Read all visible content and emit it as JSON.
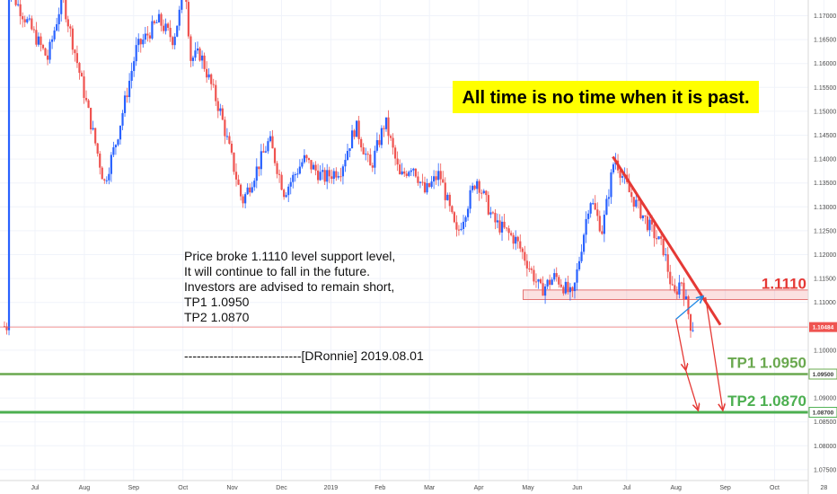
{
  "chart_data": {
    "type": "candlestick",
    "headline": "All time is no time when it is past.",
    "note_lines": [
      "Price broke 1.1110 level support level,",
      "It will continue to fall in the future.",
      "Investors are advised to remain short,",
      "TP1 1.0950",
      "TP2 1.0870",
      "",
      "----------------------------[DRonnie]  2019.08.01"
    ],
    "x_ticks": [
      "Jul",
      "Aug",
      "Sep",
      "Oct",
      "Nov",
      "Dec",
      "2019",
      "Feb",
      "Mar",
      "Apr",
      "May",
      "Jun",
      "Jul",
      "Aug",
      "Sep",
      "Oct",
      "28"
    ],
    "y_ticks": [
      "1.17000",
      "1.16500",
      "1.16000",
      "1.15500",
      "1.15000",
      "1.14500",
      "1.14000",
      "1.13500",
      "1.13000",
      "1.12500",
      "1.12000",
      "1.11500",
      "1.11000",
      "1.10500",
      "1.10000",
      "1.09500",
      "1.09000",
      "1.08500",
      "1.08000",
      "1.07500"
    ],
    "ylim": [
      1.0735,
      1.1735
    ],
    "grid": true,
    "last_price": {
      "label": "1.10484",
      "value": 1.10484,
      "color": "#ef5350"
    },
    "levels": [
      {
        "name": "support",
        "label": "1.1110",
        "value": 1.111,
        "color": "#e53935"
      },
      {
        "name": "tp1",
        "label": "TP1 1.0950",
        "badge": "1.09500",
        "value": 1.095,
        "color": "#6aa84f"
      },
      {
        "name": "tp2",
        "label": "TP2 1.0870",
        "badge": "1.08700",
        "value": 1.087,
        "color": "#4caf50"
      }
    ],
    "support_zone": {
      "low": 1.1106,
      "high": 1.1126,
      "start_month": 9.9
    },
    "trendline": {
      "from": [
        11.72,
        1.1405
      ],
      "to": [
        13.9,
        1.1053
      ]
    },
    "path_arrows": [
      [
        [
          13.0,
          1.1065
        ],
        [
          13.55,
          1.1113
        ]
      ],
      [
        [
          13.6,
          1.1111
        ],
        [
          13.95,
          1.0874
        ]
      ],
      [
        [
          13.0,
          1.1065
        ],
        [
          13.2,
          1.0958
        ]
      ],
      [
        [
          13.2,
          1.0958
        ],
        [
          13.45,
          1.0874
        ]
      ]
    ],
    "up_color": "#2962ff",
    "down_color": "#ef5350",
    "anchors": [
      [
        -0.5,
        1.176
      ],
      [
        0.3,
        1.161
      ],
      [
        0.6,
        1.174
      ],
      [
        0.95,
        1.158
      ],
      [
        1.45,
        1.135
      ],
      [
        1.7,
        1.144
      ],
      [
        2.1,
        1.163
      ],
      [
        2.55,
        1.169
      ],
      [
        2.85,
        1.165
      ],
      [
        3.1,
        1.176
      ],
      [
        3.2,
        1.161
      ],
      [
        3.4,
        1.162
      ],
      [
        3.8,
        1.15
      ],
      [
        4.25,
        1.131
      ],
      [
        4.8,
        1.144
      ],
      [
        5.1,
        1.133
      ],
      [
        5.5,
        1.14
      ],
      [
        5.9,
        1.136
      ],
      [
        6.25,
        1.138
      ],
      [
        6.55,
        1.147
      ],
      [
        6.85,
        1.138
      ],
      [
        7.15,
        1.148
      ],
      [
        7.45,
        1.136
      ],
      [
        7.7,
        1.139
      ],
      [
        7.95,
        1.133
      ],
      [
        8.25,
        1.137
      ],
      [
        8.6,
        1.124
      ],
      [
        9.0,
        1.136
      ],
      [
        9.35,
        1.127
      ],
      [
        9.8,
        1.123
      ],
      [
        9.95,
        1.12
      ],
      [
        10.3,
        1.1125
      ],
      [
        10.6,
        1.1155
      ],
      [
        10.95,
        1.111
      ],
      [
        11.3,
        1.132
      ],
      [
        11.55,
        1.125
      ],
      [
        11.8,
        1.1405
      ],
      [
        12.1,
        1.133
      ],
      [
        12.5,
        1.126
      ],
      [
        12.8,
        1.121
      ],
      [
        13.0,
        1.111
      ],
      [
        13.15,
        1.115
      ],
      [
        13.35,
        1.105
      ]
    ]
  }
}
